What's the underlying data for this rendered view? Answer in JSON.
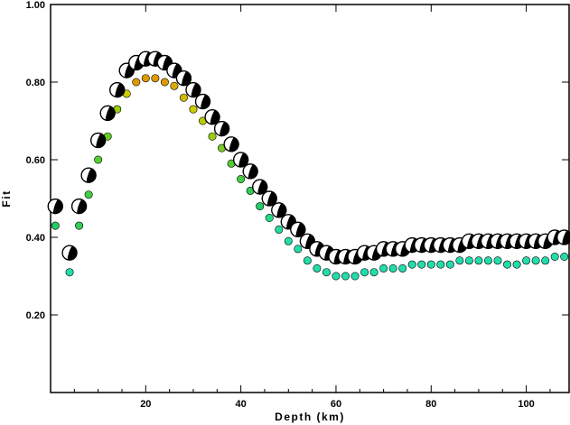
{
  "chart_data": {
    "type": "scatter",
    "title": "",
    "xlabel": "Depth (km)",
    "ylabel": "Fit",
    "xlim": [
      0,
      109
    ],
    "ylim": [
      0.0,
      1.0
    ],
    "xticks": [
      20,
      40,
      60,
      80,
      100
    ],
    "yticks": [
      0.2,
      0.4,
      0.6,
      0.8,
      1.0
    ],
    "xtick_labels": [
      "20",
      "40",
      "60",
      "80",
      "100"
    ],
    "ytick_labels": [
      "0.20",
      "0.40",
      "0.60",
      "0.80",
      "1.00"
    ],
    "grid": false,
    "series": [
      {
        "marker": "focal-mechanism-beachball",
        "x": [
          1,
          4,
          6,
          8,
          10,
          12,
          14,
          16,
          18,
          20,
          22,
          24,
          26,
          28,
          30,
          32,
          34,
          36,
          38,
          40,
          42,
          44,
          46,
          48,
          50,
          52,
          54,
          56,
          58,
          60,
          62,
          64,
          66,
          68,
          70,
          72,
          74,
          76,
          78,
          80,
          82,
          84,
          86,
          88,
          90,
          92,
          94,
          96,
          98,
          100,
          102,
          104,
          106,
          108
        ],
        "values": [
          0.48,
          0.36,
          0.48,
          0.56,
          0.65,
          0.72,
          0.78,
          0.83,
          0.85,
          0.86,
          0.86,
          0.85,
          0.83,
          0.81,
          0.78,
          0.75,
          0.71,
          0.68,
          0.64,
          0.6,
          0.57,
          0.53,
          0.5,
          0.47,
          0.44,
          0.42,
          0.39,
          0.37,
          0.36,
          0.35,
          0.35,
          0.35,
          0.36,
          0.36,
          0.37,
          0.37,
          0.37,
          0.38,
          0.38,
          0.38,
          0.38,
          0.38,
          0.38,
          0.39,
          0.39,
          0.39,
          0.39,
          0.39,
          0.39,
          0.39,
          0.39,
          0.39,
          0.4,
          0.4
        ]
      },
      {
        "marker": "color-coded-dot",
        "x": [
          1,
          4,
          6,
          8,
          10,
          12,
          14,
          16,
          18,
          20,
          22,
          24,
          26,
          28,
          30,
          32,
          34,
          36,
          38,
          40,
          42,
          44,
          46,
          48,
          50,
          52,
          54,
          56,
          58,
          60,
          62,
          64,
          66,
          68,
          70,
          72,
          74,
          76,
          78,
          80,
          82,
          84,
          86,
          88,
          90,
          92,
          94,
          96,
          98,
          100,
          102,
          104,
          106,
          108
        ],
        "values": [
          0.43,
          0.31,
          0.43,
          0.51,
          0.6,
          0.66,
          0.73,
          0.77,
          0.8,
          0.81,
          0.81,
          0.8,
          0.79,
          0.76,
          0.73,
          0.7,
          0.66,
          0.63,
          0.59,
          0.55,
          0.52,
          0.48,
          0.45,
          0.42,
          0.39,
          0.37,
          0.34,
          0.32,
          0.31,
          0.3,
          0.3,
          0.3,
          0.31,
          0.31,
          0.32,
          0.32,
          0.32,
          0.33,
          0.33,
          0.33,
          0.33,
          0.33,
          0.34,
          0.34,
          0.34,
          0.34,
          0.34,
          0.33,
          0.33,
          0.34,
          0.34,
          0.34,
          0.35,
          0.35
        ],
        "colors": [
          "#22cc66",
          "#22ddaa",
          "#33cc55",
          "#44cc44",
          "#55cc33",
          "#66cc22",
          "#99cc11",
          "#cccc00",
          "#dd9900",
          "#dd9900",
          "#dd9900",
          "#dd9900",
          "#ddaa00",
          "#ccbb00",
          "#cccc00",
          "#bbcc00",
          "#99cc11",
          "#77cc22",
          "#55cc33",
          "#44cc44",
          "#33cc55",
          "#22cc66",
          "#22dd88",
          "#22dd99",
          "#22ddaa",
          "#22ddaa",
          "#22ddaa",
          "#22ddaa",
          "#22ddaa",
          "#22ddaa",
          "#22ddaa",
          "#22ddaa",
          "#22ddaa",
          "#22ddaa",
          "#22ddaa",
          "#22ddaa",
          "#22ddaa",
          "#22ddaa",
          "#22ddaa",
          "#22ddaa",
          "#22ddaa",
          "#22ddaa",
          "#22ddaa",
          "#22ddaa",
          "#22ddaa",
          "#22ddaa",
          "#22ddaa",
          "#22ddaa",
          "#22ddaa",
          "#22ddaa",
          "#22ddaa",
          "#22ddaa",
          "#22ddaa",
          "#22ddaa"
        ]
      }
    ]
  }
}
